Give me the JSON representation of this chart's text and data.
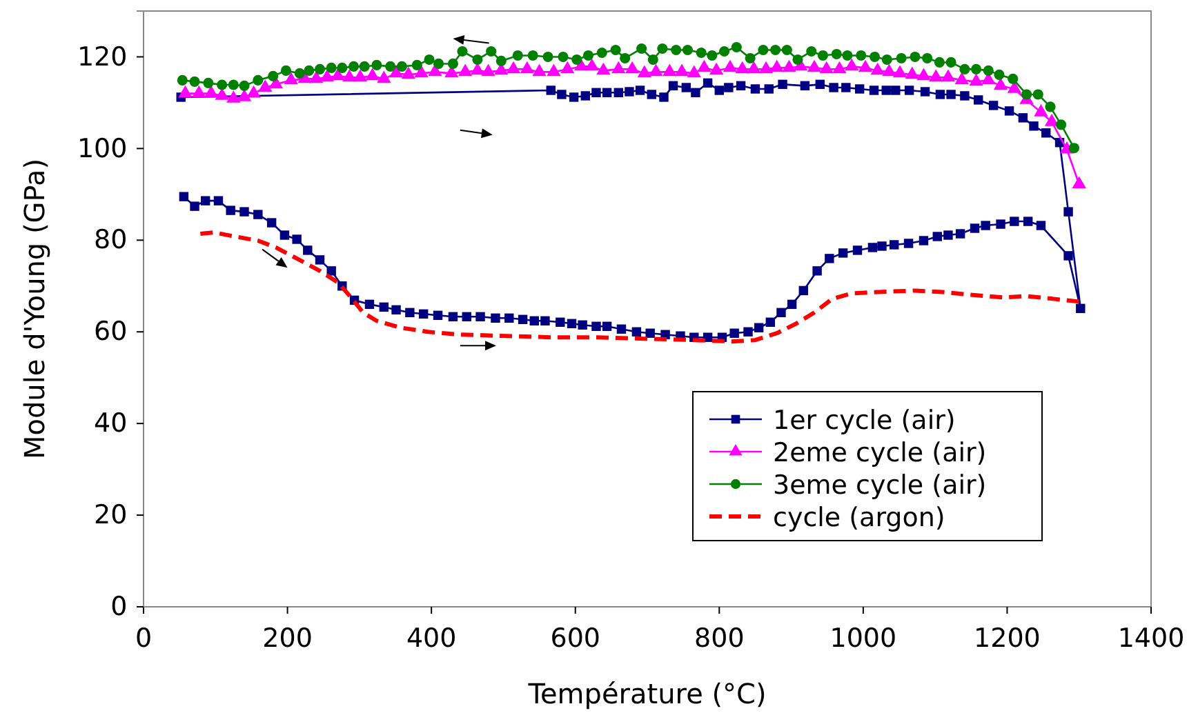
{
  "chart_data": {
    "type": "line",
    "xlabel": "Température (°C)",
    "ylabel": "Module d'Young (GPa)",
    "xlim": [
      0,
      1400
    ],
    "xticks": [
      0,
      200,
      400,
      600,
      800,
      1000,
      1200,
      1400
    ],
    "ylim": [
      0,
      130
    ],
    "yticks": [
      0,
      20,
      40,
      60,
      80,
      100,
      120
    ],
    "grid": false,
    "legend": "bottom right",
    "series": [
      {
        "name": "1er cycle (air)",
        "color": "#000080",
        "marker": "square",
        "line_style": "solid",
        "x": [
          56,
          71,
          86,
          104,
          121,
          140,
          159,
          178,
          196,
          213,
          228,
          245,
          261,
          276,
          293,
          314,
          334,
          351,
          370,
          389,
          409,
          430,
          449,
          468,
          489,
          508,
          527,
          543,
          558,
          579,
          595,
          610,
          629,
          644,
          664,
          685,
          704,
          725,
          746,
          765,
          784,
          804,
          821,
          840,
          855,
          871,
          886,
          901,
          917,
          936,
          953,
          972,
          992,
          1013,
          1026,
          1043,
          1063,
          1084,
          1103,
          1118,
          1135,
          1155,
          1170,
          1191,
          1210,
          1229,
          1247,
          1285,
          1302,
          1285,
          1273,
          1254,
          1237,
          1222,
          1203,
          1181,
          1160,
          1141,
          1122,
          1107,
          1086,
          1064,
          1045,
          1032,
          1015,
          995,
          976,
          959,
          940,
          919,
          888,
          869,
          850,
          830,
          813,
          800,
          784,
          767,
          754,
          736,
          723,
          706,
          690,
          675,
          660,
          644,
          629,
          614,
          598,
          581,
          566,
          52
        ],
        "values": [
          89.5,
          87.4,
          88.6,
          88.6,
          86.5,
          86.2,
          85.6,
          83.8,
          81.1,
          80.2,
          77.8,
          75.7,
          73.3,
          70.0,
          66.9,
          66.0,
          65.4,
          64.8,
          64.2,
          63.9,
          63.6,
          63.3,
          63.3,
          63.3,
          63.0,
          63.0,
          62.7,
          62.4,
          62.4,
          62.1,
          61.8,
          61.5,
          61.2,
          61.2,
          60.6,
          60.0,
          59.7,
          59.4,
          59.1,
          58.8,
          58.8,
          58.8,
          59.7,
          60.0,
          60.9,
          62.1,
          64.2,
          66.0,
          69.0,
          73.3,
          76.0,
          77.2,
          77.8,
          78.4,
          78.7,
          79.0,
          79.3,
          79.9,
          80.8,
          81.1,
          81.4,
          82.6,
          83.2,
          83.5,
          84.1,
          84.1,
          83.2,
          76.6,
          65.1,
          86.2,
          101.3,
          103.4,
          104.9,
          106.7,
          108.2,
          109.4,
          110.6,
          111.5,
          111.8,
          111.8,
          112.4,
          112.7,
          112.7,
          112.7,
          112.7,
          113.0,
          113.3,
          113.3,
          114.0,
          113.7,
          114.0,
          113.0,
          113.0,
          113.7,
          113.3,
          112.7,
          114.3,
          112.2,
          113.3,
          113.7,
          111.2,
          111.8,
          112.7,
          112.4,
          112.2,
          112.2,
          112.2,
          111.5,
          111.2,
          111.8,
          112.7,
          111.2
        ]
      },
      {
        "name": "2eme cycle (air)",
        "color": "#ff00ff",
        "marker": "triangle",
        "line_style": "solid",
        "x": [
          58,
          77,
          94,
          109,
          125,
          140,
          153,
          169,
          184,
          205,
          224,
          240,
          255,
          270,
          286,
          301,
          318,
          334,
          351,
          368,
          386,
          405,
          428,
          447,
          464,
          479,
          497,
          514,
          533,
          550,
          570,
          589,
          608,
          623,
          639,
          660,
          679,
          696,
          712,
          731,
          748,
          765,
          779,
          796,
          815,
          832,
          848,
          865,
          880,
          897,
          913,
          932,
          949,
          967,
          984,
          1003,
          1020,
          1036,
          1051,
          1068,
          1084,
          1101,
          1118,
          1137,
          1157,
          1174,
          1191,
          1210,
          1227,
          1247,
          1262,
          1283,
          1300
        ],
        "values": [
          112.0,
          112.0,
          112.0,
          111.5,
          110.9,
          111.2,
          112.0,
          113.3,
          114.0,
          114.9,
          115.2,
          115.2,
          115.5,
          115.8,
          115.5,
          115.5,
          115.8,
          115.2,
          116.4,
          116.1,
          116.4,
          116.7,
          116.4,
          116.7,
          117.0,
          116.7,
          117.0,
          117.3,
          117.3,
          116.7,
          116.7,
          117.3,
          117.9,
          117.9,
          117.0,
          117.3,
          117.3,
          116.4,
          116.7,
          116.7,
          116.7,
          116.4,
          117.6,
          117.0,
          117.6,
          117.3,
          117.3,
          117.3,
          117.6,
          117.6,
          117.9,
          117.6,
          117.3,
          117.3,
          117.9,
          117.6,
          117.0,
          116.7,
          116.4,
          116.1,
          115.8,
          115.5,
          115.5,
          114.9,
          114.6,
          114.9,
          113.7,
          113.0,
          110.6,
          107.9,
          105.8,
          99.8,
          92.2
        ]
      },
      {
        "name": "3eme cycle (air)",
        "color": "#008000",
        "marker": "circle",
        "line_style": "solid",
        "x": [
          54,
          71,
          90,
          109,
          125,
          140,
          159,
          180,
          198,
          217,
          230,
          245,
          261,
          276,
          292,
          307,
          324,
          343,
          359,
          380,
          397,
          410,
          430,
          443,
          464,
          483,
          497,
          520,
          541,
          562,
          583,
          602,
          618,
          637,
          656,
          669,
          692,
          708,
          721,
          740,
          756,
          775,
          790,
          807,
          824,
          843,
          861,
          878,
          894,
          909,
          928,
          944,
          963,
          978,
          997,
          1016,
          1033,
          1053,
          1072,
          1089,
          1106,
          1122,
          1141,
          1157,
          1174,
          1189,
          1208,
          1227,
          1243,
          1260,
          1275,
          1293
        ],
        "values": [
          114.9,
          114.6,
          114.3,
          113.9,
          113.9,
          113.7,
          114.9,
          115.8,
          117.0,
          116.4,
          117.0,
          117.3,
          117.6,
          117.6,
          117.9,
          117.9,
          118.2,
          117.9,
          117.9,
          118.2,
          119.4,
          118.5,
          118.5,
          121.2,
          119.4,
          121.2,
          119.1,
          120.3,
          120.3,
          120.0,
          120.0,
          119.4,
          120.3,
          120.9,
          121.5,
          119.7,
          121.8,
          119.4,
          121.8,
          121.5,
          121.5,
          120.9,
          120.3,
          121.2,
          122.1,
          119.7,
          121.5,
          121.5,
          121.5,
          119.4,
          121.2,
          120.3,
          120.6,
          120.3,
          120.3,
          120.0,
          119.4,
          119.7,
          120.0,
          119.7,
          118.8,
          118.8,
          117.3,
          117.3,
          117.0,
          116.1,
          115.2,
          111.8,
          111.8,
          109.1,
          105.2,
          100.1
        ]
      },
      {
        "name": "cycle (argon)",
        "color": "#ff0000",
        "marker": "none",
        "line_style": "dashed",
        "x": [
          79,
          98,
          127,
          159,
          184,
          213,
          245,
          270,
          290,
          305,
          324,
          357,
          395,
          439,
          504,
          568,
          631,
          696,
          765,
          817,
          850,
          880,
          907,
          932,
          957,
          984,
          1022,
          1072,
          1110,
          1149,
          1195,
          1226,
          1264,
          1300
        ],
        "values": [
          81.4,
          81.7,
          80.8,
          79.9,
          78.4,
          76.0,
          73.3,
          70.8,
          67.2,
          64.2,
          62.4,
          60.9,
          60.0,
          59.4,
          59.1,
          58.8,
          58.8,
          58.5,
          58.2,
          57.9,
          58.2,
          59.7,
          61.8,
          64.2,
          67.2,
          68.4,
          68.7,
          69.0,
          68.7,
          68.1,
          67.5,
          67.8,
          67.2,
          66.6
        ]
      }
    ]
  }
}
